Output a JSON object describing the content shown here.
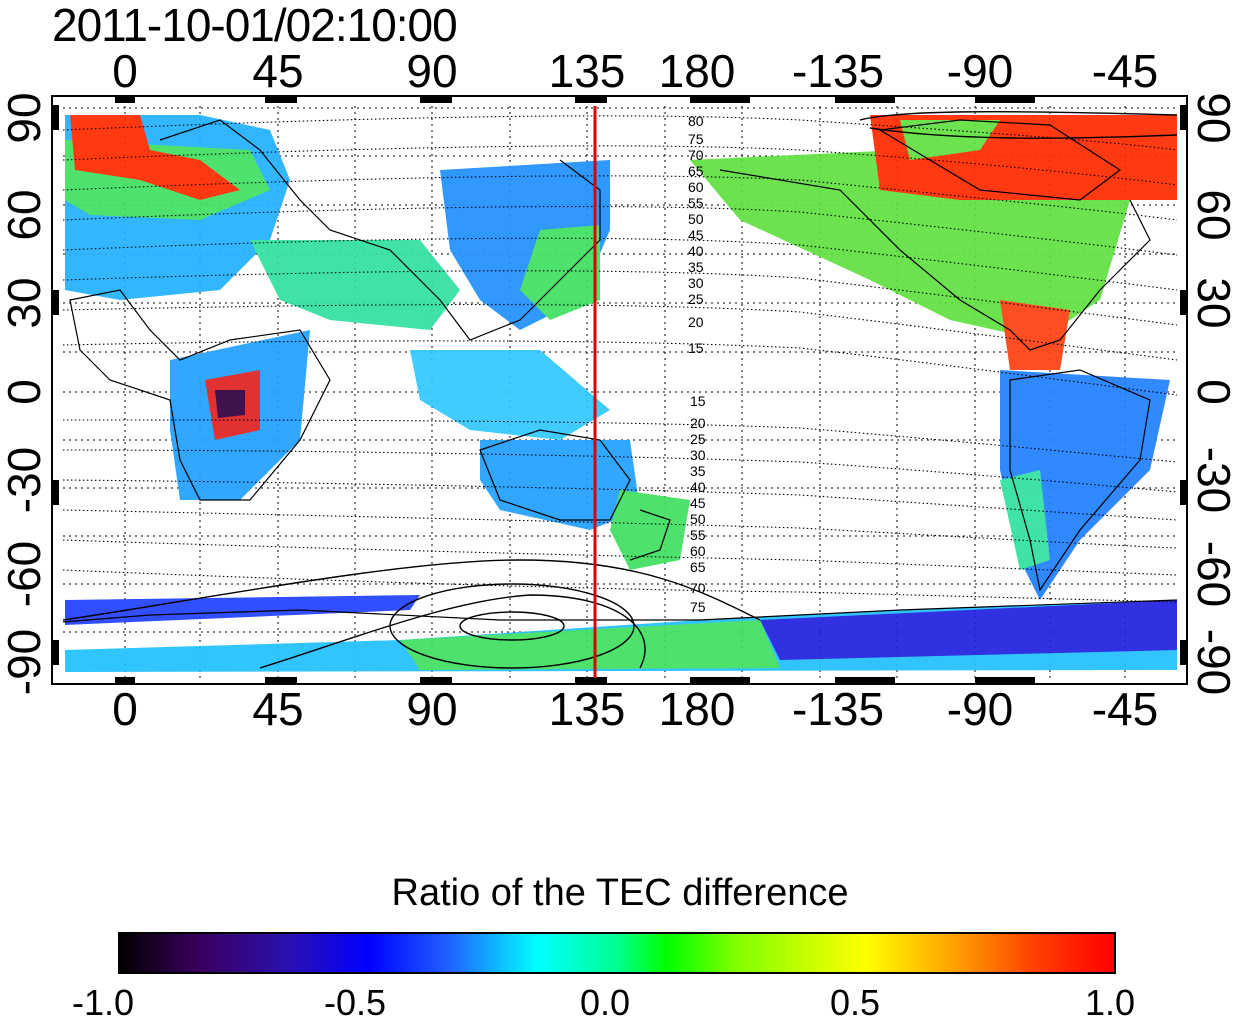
{
  "header": {
    "timestamp": "2011-10-01/02:10:00"
  },
  "map": {
    "top_lon_ticks": [
      "0",
      "45",
      "90",
      "135",
      "180",
      "-135",
      "-90",
      "-45"
    ],
    "bottom_lon_ticks": [
      "0",
      "45",
      "90",
      "135",
      "180",
      "-135",
      "-90",
      "-45"
    ],
    "left_lat_ticks": [
      "90",
      "60",
      "30",
      "0",
      "-30",
      "-60",
      "-90"
    ],
    "right_lat_ticks": [
      "90",
      "60",
      "30",
      "0",
      "-30",
      "-60",
      "-90"
    ],
    "terminator_lon": 150,
    "contour_labels_north": [
      "80",
      "75",
      "70",
      "65",
      "60",
      "55",
      "50",
      "45",
      "40",
      "35",
      "30",
      "25",
      "20",
      "15"
    ],
    "contour_labels_south": [
      "15",
      "20",
      "25",
      "30",
      "35",
      "40",
      "45",
      "50",
      "55",
      "60",
      "65",
      "70",
      "75"
    ],
    "colors": {
      "terminator": "#e00000",
      "negative": "#1040ff",
      "neutral": "#00ff80",
      "positive": "#ff0000"
    }
  },
  "colorbar": {
    "title": "Ratio of the TEC difference",
    "ticks": [
      "-1.0",
      "-0.5",
      "0.0",
      "0.5",
      "1.0"
    ],
    "range": [
      -1.0,
      1.0
    ]
  }
}
